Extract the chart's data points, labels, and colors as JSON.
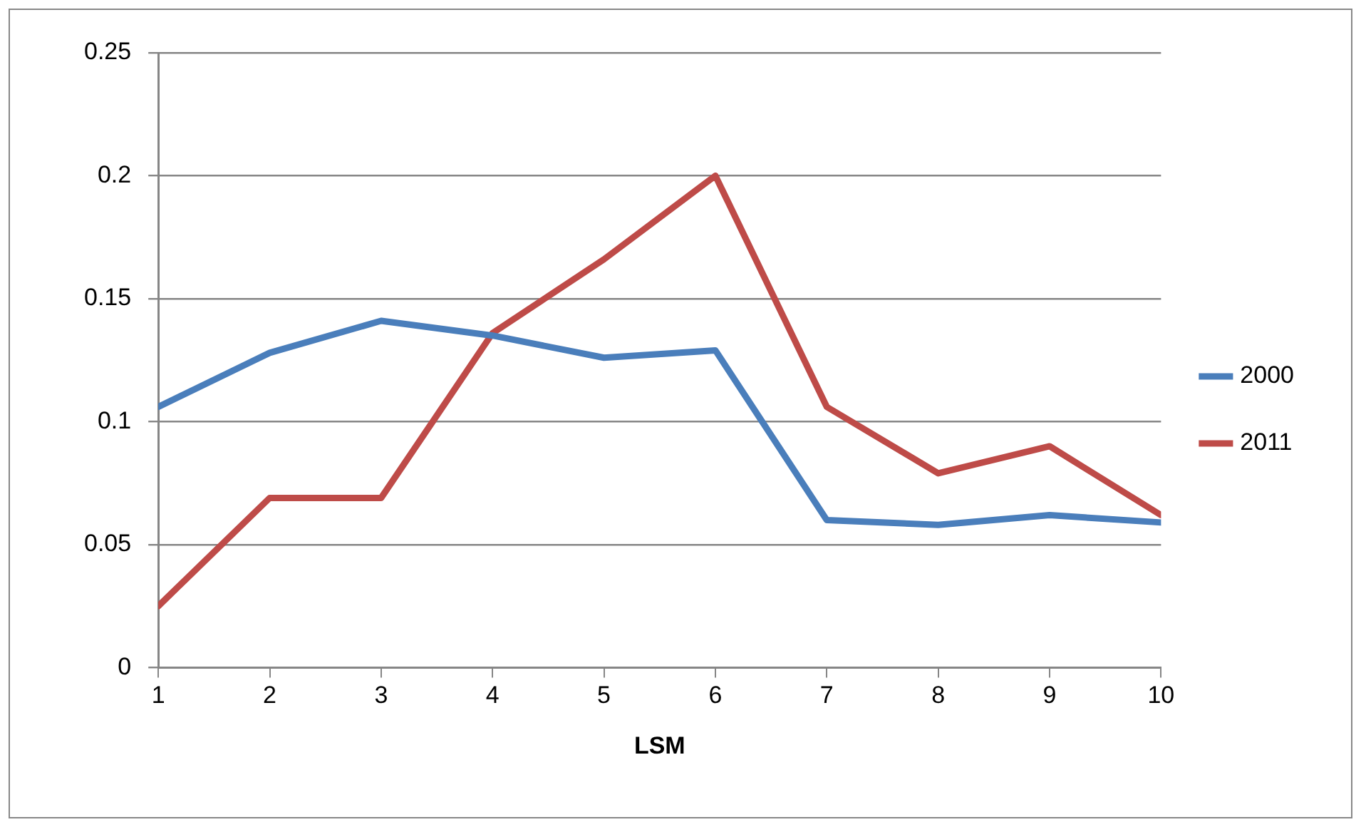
{
  "chart_data": {
    "type": "line",
    "xlabel": "LSM",
    "x": [
      1,
      2,
      3,
      4,
      5,
      6,
      7,
      8,
      9,
      10
    ],
    "xlim": [
      1,
      10
    ],
    "xticks": [
      1,
      2,
      3,
      4,
      5,
      6,
      7,
      8,
      9,
      10
    ],
    "ylim": [
      0,
      0.25
    ],
    "yticks": [
      0,
      0.05,
      0.1,
      0.15,
      0.2,
      0.25
    ],
    "grid": "y",
    "legend": "right",
    "marker": "none",
    "line_style": "solid",
    "series": [
      {
        "name": "2000",
        "color": "#4a7ebb",
        "values": [
          0.106,
          0.128,
          0.141,
          0.135,
          0.126,
          0.129,
          0.06,
          0.058,
          0.062,
          0.059
        ]
      },
      {
        "name": "2011",
        "color": "#be4b48",
        "values": [
          0.025,
          0.069,
          0.069,
          0.136,
          0.166,
          0.2,
          0.106,
          0.079,
          0.09,
          0.062
        ]
      }
    ]
  }
}
